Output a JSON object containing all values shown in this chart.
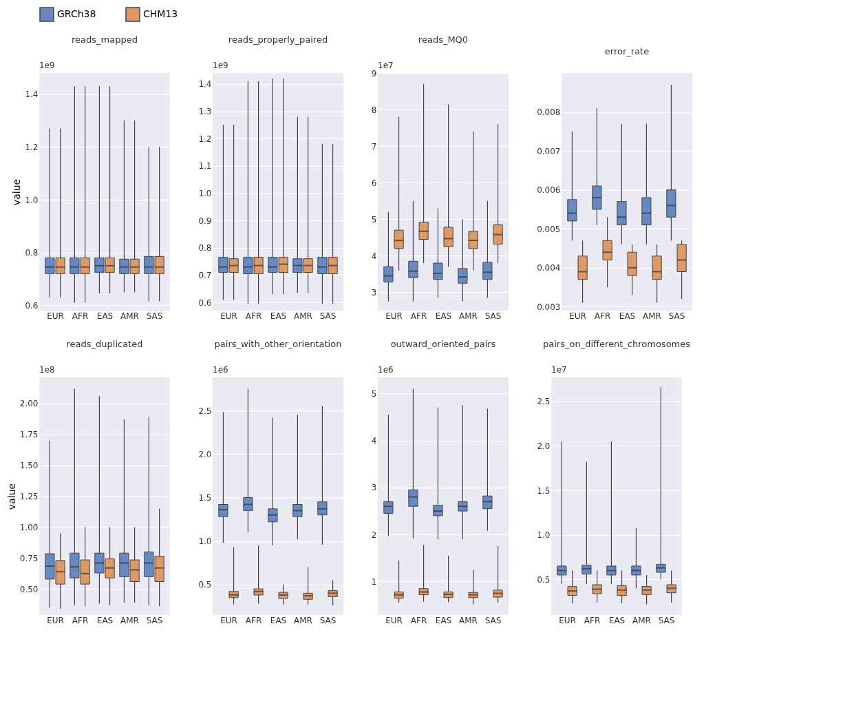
{
  "chart_data": [
    {
      "type": "box",
      "title": "reads_mapped",
      "ylabel": "value",
      "annotations": [
        "1e9"
      ],
      "legend": "top",
      "grid": "y",
      "categories": [
        "EUR",
        "AFR",
        "EAS",
        "AMR",
        "SAS"
      ],
      "ylim": [
        0.58,
        1.48
      ],
      "yticks": [
        0.6,
        0.8,
        {
          "value": 1.0,
          "label": "1.0"
        },
        1.2,
        1.4
      ],
      "series": [
        {
          "name": "GRCh38",
          "color": "#6689c4",
          "boxes": [
            {
              "low": 0.63,
              "q1": 0.72,
              "median": 0.745,
              "q3": 0.78,
              "high": 1.27
            },
            {
              "low": 0.61,
              "q1": 0.72,
              "median": 0.745,
              "q3": 0.78,
              "high": 1.43
            },
            {
              "low": 0.645,
              "q1": 0.725,
              "median": 0.75,
              "q3": 0.78,
              "high": 1.43
            },
            {
              "low": 0.65,
              "q1": 0.72,
              "median": 0.745,
              "q3": 0.775,
              "high": 1.3
            },
            {
              "low": 0.615,
              "q1": 0.72,
              "median": 0.745,
              "q3": 0.785,
              "high": 1.2
            }
          ]
        },
        {
          "name": "CHM13",
          "color": "#dd9966",
          "boxes": [
            {
              "low": 0.63,
              "q1": 0.72,
              "median": 0.745,
              "q3": 0.78,
              "high": 1.27
            },
            {
              "low": 0.61,
              "q1": 0.72,
              "median": 0.745,
              "q3": 0.78,
              "high": 1.43
            },
            {
              "low": 0.645,
              "q1": 0.725,
              "median": 0.75,
              "q3": 0.78,
              "high": 1.43
            },
            {
              "low": 0.65,
              "q1": 0.72,
              "median": 0.745,
              "q3": 0.775,
              "high": 1.3
            },
            {
              "low": 0.615,
              "q1": 0.72,
              "median": 0.745,
              "q3": 0.785,
              "high": 1.2
            }
          ]
        }
      ]
    },
    {
      "type": "box",
      "title": "reads_properly_paired",
      "annotations": [
        "1e9"
      ],
      "grid": "y",
      "categories": [
        "EUR",
        "AFR",
        "EAS",
        "AMR",
        "SAS"
      ],
      "ylim": [
        0.57,
        1.44
      ],
      "yticks": [
        0.6,
        0.7,
        0.8,
        0.9,
        {
          "value": 1.0,
          "label": "1.0"
        },
        1.1,
        1.2,
        1.3,
        1.4
      ],
      "series": [
        {
          "name": "GRCh38",
          "color": "#6689c4",
          "boxes": [
            {
              "low": 0.61,
              "q1": 0.71,
              "median": 0.73,
              "q3": 0.765,
              "high": 1.25
            },
            {
              "low": 0.595,
              "q1": 0.705,
              "median": 0.73,
              "q3": 0.765,
              "high": 1.41
            },
            {
              "low": 0.63,
              "q1": 0.71,
              "median": 0.73,
              "q3": 0.765,
              "high": 1.42
            },
            {
              "low": 0.635,
              "q1": 0.71,
              "median": 0.735,
              "q3": 0.76,
              "high": 1.28
            },
            {
              "low": 0.595,
              "q1": 0.705,
              "median": 0.73,
              "q3": 0.765,
              "high": 1.18
            }
          ]
        },
        {
          "name": "CHM13",
          "color": "#dd9966",
          "boxes": [
            {
              "low": 0.61,
              "q1": 0.71,
              "median": 0.735,
              "q3": 0.76,
              "high": 1.25
            },
            {
              "low": 0.595,
              "q1": 0.705,
              "median": 0.735,
              "q3": 0.765,
              "high": 1.41
            },
            {
              "low": 0.63,
              "q1": 0.71,
              "median": 0.74,
              "q3": 0.765,
              "high": 1.42
            },
            {
              "low": 0.635,
              "q1": 0.71,
              "median": 0.735,
              "q3": 0.76,
              "high": 1.28
            },
            {
              "low": 0.595,
              "q1": 0.705,
              "median": 0.735,
              "q3": 0.765,
              "high": 1.18
            }
          ]
        }
      ]
    },
    {
      "type": "box",
      "title": "reads_MQ0",
      "annotations": [
        "1e7"
      ],
      "grid": "y",
      "categories": [
        "EUR",
        "AFR",
        "EAS",
        "AMR",
        "SAS"
      ],
      "ylim": [
        2.5,
        9
      ],
      "yticks": [
        3,
        4,
        5,
        6,
        7,
        8,
        9
      ],
      "series": [
        {
          "name": "GRCh38",
          "color": "#6689c4",
          "boxes": [
            {
              "low": 2.75,
              "q1": 3.28,
              "median": 3.45,
              "q3": 3.7,
              "high": 5.2
            },
            {
              "low": 2.75,
              "q1": 3.4,
              "median": 3.58,
              "q3": 3.85,
              "high": 5.5
            },
            {
              "low": 2.85,
              "q1": 3.35,
              "median": 3.52,
              "q3": 3.8,
              "high": 5.3
            },
            {
              "low": 2.75,
              "q1": 3.25,
              "median": 3.42,
              "q3": 3.65,
              "high": 5.0
            },
            {
              "low": 2.85,
              "q1": 3.35,
              "median": 3.55,
              "q3": 3.82,
              "high": 5.5
            }
          ]
        },
        {
          "name": "CHM13",
          "color": "#dd9966",
          "boxes": [
            {
              "low": 3.6,
              "q1": 4.2,
              "median": 4.42,
              "q3": 4.7,
              "high": 7.8
            },
            {
              "low": 3.8,
              "q1": 4.45,
              "median": 4.67,
              "q3": 4.92,
              "high": 8.7
            },
            {
              "low": 3.7,
              "q1": 4.25,
              "median": 4.47,
              "q3": 4.78,
              "high": 8.15
            },
            {
              "low": 3.6,
              "q1": 4.2,
              "median": 4.42,
              "q3": 4.67,
              "high": 7.4
            },
            {
              "low": 3.8,
              "q1": 4.32,
              "median": 4.58,
              "q3": 4.85,
              "high": 7.6
            }
          ]
        }
      ]
    },
    {
      "type": "box",
      "title": "error_rate",
      "grid": "y",
      "categories": [
        "EUR",
        "AFR",
        "EAS",
        "AMR",
        "SAS"
      ],
      "ylim": [
        0.0029,
        0.009
      ],
      "yticks": [
        0.003,
        0.004,
        0.005,
        0.006,
        0.007,
        0.008
      ],
      "series": [
        {
          "name": "GRCh38",
          "color": "#6689c4",
          "boxes": [
            {
              "low": 0.0047,
              "q1": 0.0052,
              "median": 0.0054,
              "q3": 0.00575,
              "high": 0.0075
            },
            {
              "low": 0.0051,
              "q1": 0.0055,
              "median": 0.0058,
              "q3": 0.0061,
              "high": 0.0081
            },
            {
              "low": 0.0046,
              "q1": 0.0051,
              "median": 0.0053,
              "q3": 0.0057,
              "high": 0.0077
            },
            {
              "low": 0.0046,
              "q1": 0.0051,
              "median": 0.0054,
              "q3": 0.0058,
              "high": 0.0077
            },
            {
              "low": 0.0047,
              "q1": 0.0053,
              "median": 0.0056,
              "q3": 0.006,
              "high": 0.0087
            }
          ]
        },
        {
          "name": "CHM13",
          "color": "#dd9966",
          "boxes": [
            {
              "low": 0.0031,
              "q1": 0.0037,
              "median": 0.0039,
              "q3": 0.0043,
              "high": 0.0047
            },
            {
              "low": 0.0035,
              "q1": 0.0042,
              "median": 0.0044,
              "q3": 0.0047,
              "high": 0.0053
            },
            {
              "low": 0.0033,
              "q1": 0.0038,
              "median": 0.004,
              "q3": 0.0044,
              "high": 0.0046
            },
            {
              "low": 0.0031,
              "q1": 0.0037,
              "median": 0.0039,
              "q3": 0.0043,
              "high": 0.0046
            },
            {
              "low": 0.0032,
              "q1": 0.0039,
              "median": 0.0042,
              "q3": 0.0046,
              "high": 0.0047
            }
          ]
        }
      ]
    },
    {
      "type": "box",
      "title": "reads_duplicated",
      "ylabel": "value",
      "annotations": [
        "1e8"
      ],
      "grid": "y",
      "categories": [
        "EUR",
        "AFR",
        "EAS",
        "AMR",
        "SAS"
      ],
      "ylim": [
        0.29,
        2.21
      ],
      "yticks": [
        {
          "value": 0.5,
          "label": "0.50"
        },
        {
          "value": 0.75,
          "label": "0.75"
        },
        {
          "value": 1.0,
          "label": "1.00"
        },
        {
          "value": 1.25,
          "label": "1.25"
        },
        {
          "value": 1.5,
          "label": "1.50"
        },
        {
          "value": 1.75,
          "label": "1.75"
        },
        {
          "value": 2.0,
          "label": "2.00"
        }
      ],
      "series": [
        {
          "name": "GRCh38",
          "color": "#6689c4",
          "boxes": [
            {
              "low": 0.35,
              "q1": 0.58,
              "median": 0.685,
              "q3": 0.785,
              "high": 1.7
            },
            {
              "low": 0.37,
              "q1": 0.59,
              "median": 0.68,
              "q3": 0.79,
              "high": 2.12
            },
            {
              "low": 0.38,
              "q1": 0.63,
              "median": 0.71,
              "q3": 0.79,
              "high": 2.06
            },
            {
              "low": 0.39,
              "q1": 0.6,
              "median": 0.71,
              "q3": 0.79,
              "high": 1.87
            },
            {
              "low": 0.37,
              "q1": 0.6,
              "median": 0.71,
              "q3": 0.8,
              "high": 1.89
            }
          ]
        },
        {
          "name": "CHM13",
          "color": "#dd9966",
          "boxes": [
            {
              "low": 0.34,
              "q1": 0.54,
              "median": 0.64,
              "q3": 0.73,
              "high": 0.95
            },
            {
              "low": 0.36,
              "q1": 0.54,
              "median": 0.625,
              "q3": 0.735,
              "high": 1.0
            },
            {
              "low": 0.37,
              "q1": 0.59,
              "median": 0.67,
              "q3": 0.745,
              "high": 1.0
            },
            {
              "low": 0.39,
              "q1": 0.56,
              "median": 0.655,
              "q3": 0.735,
              "high": 1.0
            },
            {
              "low": 0.36,
              "q1": 0.56,
              "median": 0.67,
              "q3": 0.765,
              "high": 1.15
            }
          ]
        }
      ]
    },
    {
      "type": "box",
      "title": "pairs_with_other_orientation",
      "annotations": [
        "1e6"
      ],
      "grid": "y",
      "categories": [
        "EUR",
        "AFR",
        "EAS",
        "AMR",
        "SAS"
      ],
      "ylim": [
        0.15,
        2.88
      ],
      "yticks": [
        0.5,
        {
          "value": 1.0,
          "label": "1.0"
        },
        1.5,
        {
          "value": 2.0,
          "label": "2.0"
        },
        2.5
      ],
      "series": [
        {
          "name": "GRCh38",
          "color": "#6689c4",
          "boxes": [
            {
              "low": 0.98,
              "q1": 1.28,
              "median": 1.36,
              "q3": 1.42,
              "high": 2.48
            },
            {
              "low": 1.1,
              "q1": 1.35,
              "median": 1.42,
              "q3": 1.5,
              "high": 2.75
            },
            {
              "low": 0.95,
              "q1": 1.22,
              "median": 1.3,
              "q3": 1.37,
              "high": 2.42
            },
            {
              "low": 1.02,
              "q1": 1.28,
              "median": 1.35,
              "q3": 1.42,
              "high": 2.45
            },
            {
              "low": 0.96,
              "q1": 1.3,
              "median": 1.37,
              "q3": 1.45,
              "high": 2.55
            }
          ]
        },
        {
          "name": "CHM13",
          "color": "#dd9966",
          "boxes": [
            {
              "low": 0.27,
              "q1": 0.35,
              "median": 0.38,
              "q3": 0.42,
              "high": 0.93
            },
            {
              "low": 0.28,
              "q1": 0.38,
              "median": 0.42,
              "q3": 0.45,
              "high": 0.95
            },
            {
              "low": 0.27,
              "q1": 0.34,
              "median": 0.38,
              "q3": 0.41,
              "high": 0.5
            },
            {
              "low": 0.27,
              "q1": 0.33,
              "median": 0.37,
              "q3": 0.4,
              "high": 0.7
            },
            {
              "low": 0.26,
              "q1": 0.36,
              "median": 0.4,
              "q3": 0.43,
              "high": 0.55
            }
          ]
        }
      ]
    },
    {
      "type": "box",
      "title": "outward_oriented_pairs",
      "annotations": [
        "1e6"
      ],
      "grid": "y",
      "categories": [
        "EUR",
        "AFR",
        "EAS",
        "AMR",
        "SAS"
      ],
      "ylim": [
        0.29,
        5.34
      ],
      "yticks": [
        {
          "value": 1,
          "label": "1"
        },
        {
          "value": 2,
          "label": "2"
        },
        {
          "value": 3,
          "label": "3"
        },
        {
          "value": 4,
          "label": "4"
        },
        {
          "value": 5,
          "label": "5"
        }
      ],
      "series": [
        {
          "name": "GRCh38",
          "color": "#6689c4",
          "boxes": [
            {
              "low": 1.97,
              "q1": 2.45,
              "median": 2.6,
              "q3": 2.7,
              "high": 4.55
            },
            {
              "low": 1.92,
              "q1": 2.6,
              "median": 2.8,
              "q3": 2.95,
              "high": 5.1
            },
            {
              "low": 1.9,
              "q1": 2.4,
              "median": 2.5,
              "q3": 2.62,
              "high": 4.7
            },
            {
              "low": 1.9,
              "q1": 2.5,
              "median": 2.6,
              "q3": 2.7,
              "high": 4.75
            },
            {
              "low": 2.08,
              "q1": 2.55,
              "median": 2.7,
              "q3": 2.82,
              "high": 4.68
            }
          ]
        },
        {
          "name": "CHM13",
          "color": "#dd9966",
          "boxes": [
            {
              "low": 0.55,
              "q1": 0.65,
              "median": 0.72,
              "q3": 0.78,
              "high": 1.45
            },
            {
              "low": 0.57,
              "q1": 0.72,
              "median": 0.78,
              "q3": 0.85,
              "high": 1.78
            },
            {
              "low": 0.56,
              "q1": 0.66,
              "median": 0.73,
              "q3": 0.78,
              "high": 1.55
            },
            {
              "low": 0.52,
              "q1": 0.66,
              "median": 0.72,
              "q3": 0.77,
              "high": 1.25
            },
            {
              "low": 0.55,
              "q1": 0.67,
              "median": 0.75,
              "q3": 0.82,
              "high": 1.75
            }
          ]
        }
      ]
    },
    {
      "type": "box",
      "title": "pairs_on_different_chromosomes",
      "annotations": [
        "1e7"
      ],
      "grid": "y",
      "categories": [
        "EUR",
        "AFR",
        "EAS",
        "AMR",
        "SAS"
      ],
      "ylim": [
        0.1,
        2.77
      ],
      "yticks": [
        0.5,
        {
          "value": 1.0,
          "label": "1.0"
        },
        1.5,
        {
          "value": 2.0,
          "label": "2.0"
        },
        2.5
      ],
      "series": [
        {
          "name": "GRCh38",
          "color": "#6689c4",
          "boxes": [
            {
              "low": 0.45,
              "q1": 0.55,
              "median": 0.6,
              "q3": 0.65,
              "high": 2.05
            },
            {
              "low": 0.45,
              "q1": 0.56,
              "median": 0.62,
              "q3": 0.66,
              "high": 1.82
            },
            {
              "low": 0.45,
              "q1": 0.55,
              "median": 0.6,
              "q3": 0.65,
              "high": 2.05
            },
            {
              "low": 0.4,
              "q1": 0.55,
              "median": 0.6,
              "q3": 0.65,
              "high": 1.08
            },
            {
              "low": 0.5,
              "q1": 0.58,
              "median": 0.63,
              "q3": 0.67,
              "high": 2.66
            }
          ]
        },
        {
          "name": "CHM13",
          "color": "#dd9966",
          "boxes": [
            {
              "low": 0.23,
              "q1": 0.32,
              "median": 0.37,
              "q3": 0.42,
              "high": 0.6
            },
            {
              "low": 0.24,
              "q1": 0.34,
              "median": 0.39,
              "q3": 0.44,
              "high": 0.6
            },
            {
              "low": 0.23,
              "q1": 0.32,
              "median": 0.38,
              "q3": 0.43,
              "high": 0.6
            },
            {
              "low": 0.22,
              "q1": 0.33,
              "median": 0.38,
              "q3": 0.42,
              "high": 0.55
            },
            {
              "low": 0.24,
              "q1": 0.35,
              "median": 0.4,
              "q3": 0.44,
              "high": 0.6
            }
          ]
        }
      ]
    }
  ]
}
